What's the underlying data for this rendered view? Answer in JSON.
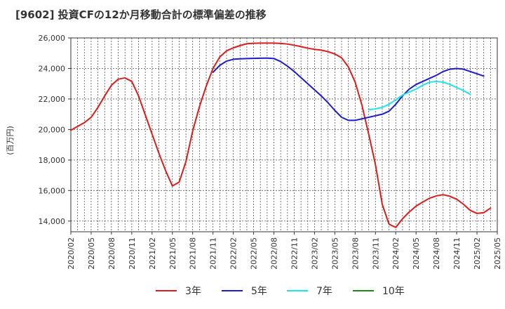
{
  "chart_data": {
    "type": "line",
    "title": "[9602]  投資CFの12か月移動合計の標準偏差の推移",
    "ylabel": "(百万円)",
    "xlabel": "",
    "ylim": [
      13300,
      26000
    ],
    "yticks": [
      14000,
      16000,
      18000,
      20000,
      22000,
      24000,
      26000
    ],
    "ytick_labels": [
      "14,000",
      "16,000",
      "18,000",
      "20,000",
      "22,000",
      "24,000",
      "26,000"
    ],
    "x_start": "2020/02",
    "x_end": "2025/05",
    "xtick_labels": [
      "2020/02",
      "2020/05",
      "2020/08",
      "2020/11",
      "2021/02",
      "2021/05",
      "2021/08",
      "2021/11",
      "2022/02",
      "2022/05",
      "2022/08",
      "2022/11",
      "2023/02",
      "2023/05",
      "2023/08",
      "2023/11",
      "2024/02",
      "2024/05",
      "2024/08",
      "2024/11",
      "2025/02",
      "2025/05"
    ],
    "grid": true,
    "legend_position": "bottom",
    "series": [
      {
        "name": "3年",
        "color": "#e01b1b",
        "start": "2020/02",
        "values": [
          19950,
          20200,
          20450,
          20800,
          21450,
          22200,
          22900,
          23300,
          23380,
          23150,
          22200,
          20950,
          19700,
          18450,
          17300,
          16300,
          16550,
          17900,
          19900,
          21500,
          22850,
          24000,
          24750,
          25150,
          25350,
          25500,
          25620,
          25650,
          25660,
          25660,
          25660,
          25640,
          25600,
          25520,
          25430,
          25330,
          25250,
          25200,
          25100,
          24950,
          24700,
          24100,
          23100,
          21600,
          19700,
          17700,
          15100,
          13800,
          13580,
          14150,
          14600,
          14980,
          15250,
          15500,
          15650,
          15730,
          15620,
          15430,
          15100,
          14700,
          14500,
          14550,
          14850
        ]
      },
      {
        "name": "5年",
        "color": "#1c1ccc",
        "start": "2021/11",
        "values": [
          23750,
          24200,
          24480,
          24600,
          24630,
          24650,
          24660,
          24670,
          24680,
          24650,
          24450,
          24150,
          23800,
          23400,
          23000,
          22600,
          22200,
          21750,
          21250,
          20800,
          20600,
          20600,
          20700,
          20800,
          20900,
          21000,
          21200,
          21650,
          22200,
          22650,
          22950,
          23150,
          23350,
          23550,
          23800,
          23950,
          24000,
          23950,
          23800,
          23650,
          23500
        ]
      },
      {
        "name": "7年",
        "color": "#1ee4ec",
        "start": "2023/10",
        "values": [
          21300,
          21350,
          21450,
          21650,
          21950,
          22250,
          22450,
          22650,
          22900,
          23100,
          23150,
          23100,
          22950,
          22750,
          22550,
          22300
        ]
      },
      {
        "name": "10年",
        "color": "#1a8a1a",
        "start": "2025/02",
        "values": []
      }
    ]
  }
}
